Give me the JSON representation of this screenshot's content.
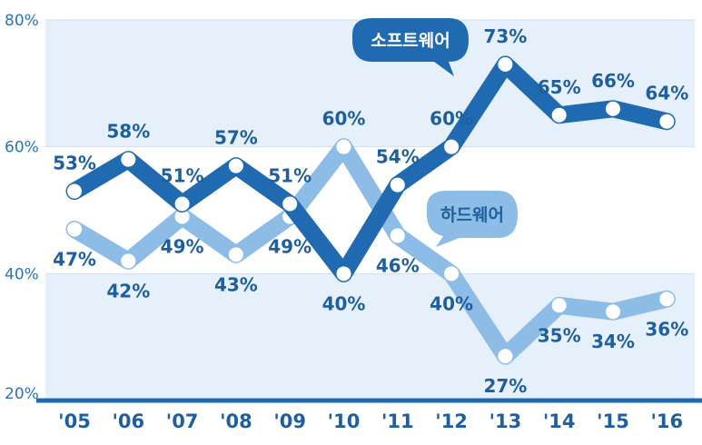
{
  "chart_data": {
    "type": "line",
    "categories": [
      "'05",
      "'06",
      "'07",
      "'08",
      "'09",
      "'10",
      "'11",
      "'12",
      "'13",
      "'14",
      "'15",
      "'16"
    ],
    "series": [
      {
        "name": "소프트웨어",
        "values": [
          53,
          58,
          51,
          57,
          51,
          40,
          54,
          60,
          73,
          65,
          66,
          64
        ],
        "color": "#1f6ab0"
      },
      {
        "name": "하드웨어",
        "values": [
          47,
          42,
          49,
          43,
          49,
          60,
          46,
          40,
          27,
          35,
          34,
          36
        ],
        "color": "#8dbde6"
      }
    ],
    "ylim": [
      20,
      80
    ],
    "yticks": [
      "20%",
      "40%",
      "60%",
      "80%"
    ],
    "labels": {
      "소프트웨어": [
        "53%",
        "58%",
        "51%",
        "57%",
        "51%",
        "40%",
        "54%",
        "60%",
        "73%",
        "65%",
        "66%",
        "64%"
      ],
      "하드웨어": [
        "47%",
        "42%",
        "49%",
        "43%",
        "49%",
        "60%",
        "46%",
        "40%",
        "27%",
        "35%",
        "34%",
        "36%"
      ]
    },
    "grid": true,
    "legend": "callouts"
  }
}
